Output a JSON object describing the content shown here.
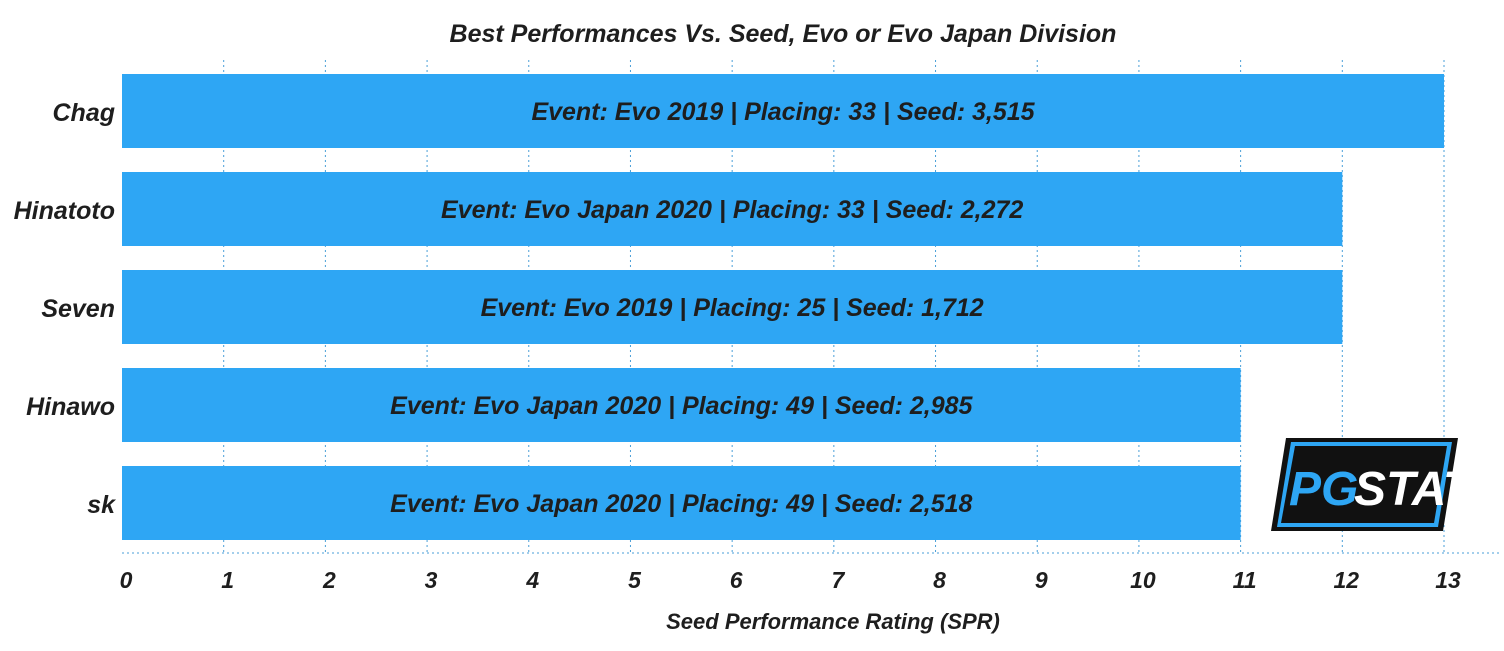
{
  "chart_data": {
    "type": "bar",
    "orientation": "horizontal",
    "title": "Best Performances Vs. Seed, Evo or Evo Japan Division",
    "xlabel": "Seed Performance Rating (SPR)",
    "ylabel": "",
    "xlim": [
      0,
      13
    ],
    "xticks": [
      "0",
      "1",
      "2",
      "3",
      "4",
      "5",
      "6",
      "7",
      "8",
      "9",
      "10",
      "11",
      "12",
      "13"
    ],
    "grid": true,
    "categories": [
      "Chag",
      "Hinatoto",
      "Seven",
      "Hinawo",
      "sk"
    ],
    "values": [
      13,
      12,
      12,
      11,
      11
    ],
    "bar_labels": [
      "Event: Evo 2019  |  Placing: 33  |  Seed:  3,515",
      "Event: Evo Japan 2020  |  Placing: 33  |  Seed:  2,272",
      "Event: Evo 2019  |  Placing: 25  |  Seed:  1,712",
      "Event: Evo Japan 2020  |  Placing: 49  |  Seed:  2,985",
      "Event: Evo Japan 2020  |  Placing: 49  |  Seed:  2,518"
    ],
    "bar_color": "#2ea6f4"
  },
  "logo": {
    "text_a": "PG",
    "text_b": "STATS",
    "accent": "#2ea6f4",
    "dark": "#111111"
  }
}
